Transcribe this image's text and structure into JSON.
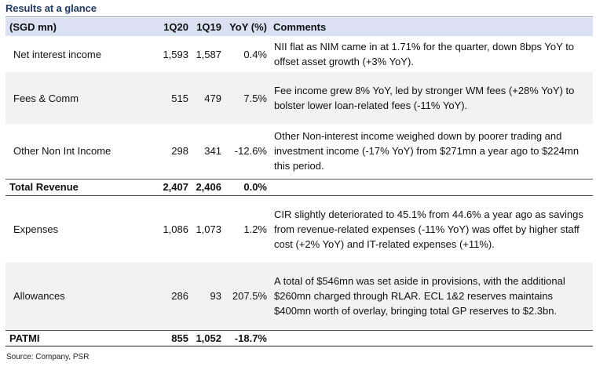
{
  "title": "Results at a glance",
  "headers": {
    "item": "(SGD mn)",
    "q20": "1Q20",
    "q19": "1Q19",
    "yoy": "YoY (%)",
    "comments": "Comments"
  },
  "rows": [
    {
      "item": "Net interest income",
      "q20": "1,593",
      "q19": "1,587",
      "yoy": "0.4%",
      "comment": "NII flat as NIM came in at 1.71% for the quarter, down 8bps YoY to offset asset growth (+3% YoY)."
    },
    {
      "item": "Fees & Comm",
      "q20": "515",
      "q19": "479",
      "yoy": "7.5%",
      "comment": "Fee income grew 8% YoY, led by stronger WM fees (+28% YoY) to bolster lower loan-related fees (-11% YoY)."
    },
    {
      "item": "Other Non Int Income",
      "q20": "298",
      "q19": "341",
      "yoy": "-12.6%",
      "comment": "Other Non-interest income weighed down by poorer trading and investment income (-17% YoY) from $271mn a year ago to $224mn this period."
    },
    {
      "item": "Total Revenue",
      "q20": "2,407",
      "q19": "2,406",
      "yoy": "0.0%",
      "comment": ""
    },
    {
      "item": "Expenses",
      "q20": "1,086",
      "q19": "1,073",
      "yoy": "1.2%",
      "comment": "CIR slightly deteriorated to 45.1% from 44.6% a year ago as savings from revenue-related expenses (-11% YoY) was offet by higher staff cost (+2% YoY) and IT-related expenses (+11%)."
    },
    {
      "item": "Allowances",
      "q20": "286",
      "q19": "93",
      "yoy": "207.5%",
      "comment": "A total of $546mn was set aside in provisions, with the additional $260mn charged through RLAR. ECL 1&2 reserves maintains $400mn worth of overlay, bringing total GP reserves to $2.3bn."
    },
    {
      "item": "PATMI",
      "q20": "855",
      "q19": "1,052",
      "yoy": "-18.7%",
      "comment": ""
    }
  ],
  "source": "Source: Company, PSR"
}
